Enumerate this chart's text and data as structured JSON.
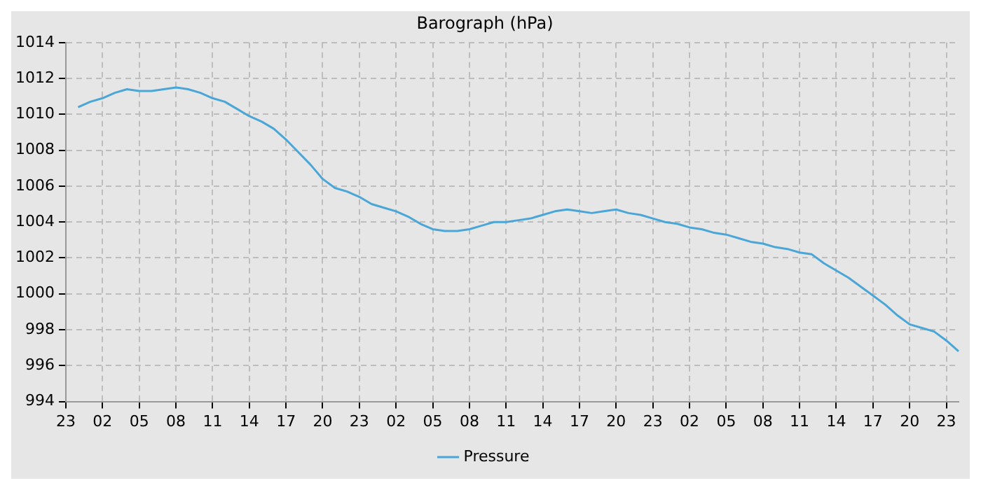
{
  "chart_data": {
    "type": "line",
    "title": "Barograph (hPa)",
    "categories": [
      "23",
      null,
      null,
      "02",
      null,
      null,
      "05",
      null,
      null,
      "08",
      null,
      null,
      "11",
      null,
      null,
      "14",
      null,
      null,
      "17",
      null,
      null,
      "20",
      null,
      null,
      "23",
      null,
      null,
      "02",
      null,
      null,
      "05",
      null,
      null,
      "08",
      null,
      null,
      "11",
      null,
      null,
      "14",
      null,
      null,
      "17",
      null,
      null,
      "20",
      null,
      null,
      "23",
      null,
      null,
      "02",
      null,
      null,
      "05",
      null,
      null,
      "08",
      null,
      null,
      "11",
      null,
      null,
      "14",
      null,
      null,
      "17",
      null,
      null,
      "20",
      null,
      null,
      "23",
      null
    ],
    "series": [
      {
        "name": "Pressure",
        "color": "#4ba6d8",
        "values": [
          null,
          1010.4,
          1010.7,
          1010.9,
          1011.2,
          1011.4,
          1011.3,
          1011.3,
          1011.4,
          1011.5,
          1011.4,
          1011.2,
          1010.9,
          1010.7,
          1010.3,
          1009.9,
          1009.6,
          1009.2,
          1008.6,
          1007.9,
          1007.2,
          1006.4,
          1005.9,
          1005.7,
          1005.4,
          1005.0,
          1004.8,
          1004.6,
          1004.3,
          1003.9,
          1003.6,
          1003.5,
          1003.5,
          1003.6,
          1003.8,
          1004.0,
          1004.0,
          1004.1,
          1004.2,
          1004.4,
          1004.6,
          1004.7,
          1004.6,
          1004.5,
          1004.6,
          1004.7,
          1004.5,
          1004.4,
          1004.2,
          1004.0,
          1003.9,
          1003.7,
          1003.6,
          1003.4,
          1003.3,
          1003.1,
          1002.9,
          1002.8,
          1002.6,
          1002.5,
          1002.3,
          1002.2,
          1001.7,
          1001.3,
          1000.9,
          1000.4,
          999.9,
          999.4,
          998.8,
          998.3,
          998.1,
          997.9,
          997.4,
          996.8
        ]
      }
    ],
    "ylim": [
      994,
      1014
    ],
    "yticks": [
      994,
      996,
      998,
      1000,
      1002,
      1004,
      1006,
      1008,
      1010,
      1012,
      1014
    ],
    "grid": true,
    "legend": "bottom",
    "marker": "none",
    "line_style": "solid"
  }
}
